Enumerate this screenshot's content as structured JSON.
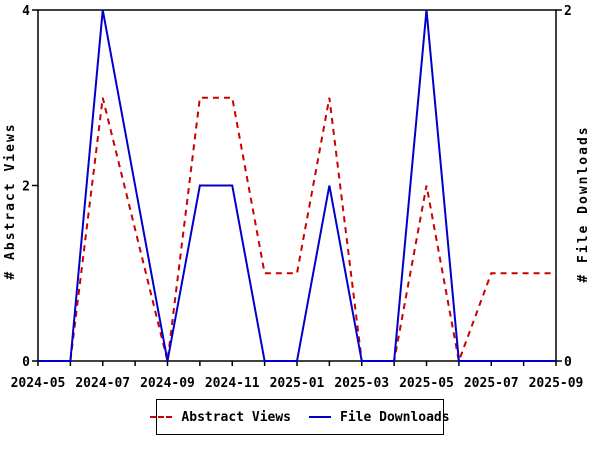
{
  "chart_data": {
    "type": "line",
    "title": "",
    "x": [
      "2024-05",
      "2024-06",
      "2024-07",
      "2024-08",
      "2024-09",
      "2024-10",
      "2024-11",
      "2024-12",
      "2025-01",
      "2025-02",
      "2025-03",
      "2025-04",
      "2025-05",
      "2025-06",
      "2025-07",
      "2025-08",
      "2025-09"
    ],
    "x_tick_labels": [
      "2024-05",
      "2024-07",
      "2024-09",
      "2024-11",
      "2025-01",
      "2025-03",
      "2025-05",
      "2025-07",
      "2025-09"
    ],
    "x_label_interval": 2,
    "series": [
      {
        "name": "Abstract Views",
        "axis": "left",
        "color": "#cc0000",
        "style": "dashed",
        "values": [
          0,
          0,
          3,
          1.5,
          0,
          3,
          3,
          1,
          1,
          3,
          0,
          0,
          2,
          0,
          1,
          1,
          1
        ]
      },
      {
        "name": "File Downloads",
        "axis": "right",
        "color": "#0000cc",
        "style": "solid",
        "values": [
          0,
          0,
          2,
          1,
          0,
          1,
          1,
          0,
          0,
          1,
          0,
          0,
          2,
          0,
          0,
          0,
          0
        ]
      }
    ],
    "ylabel": "# Abstract Views",
    "y2label": "# File Downloads",
    "ylim": [
      0,
      4
    ],
    "y2lim": [
      0,
      2
    ],
    "yticks": [
      "0",
      "2",
      "4"
    ],
    "y2ticks": [
      "0",
      "2"
    ],
    "grid": false,
    "legend_position": "bottom-center",
    "background": "#ffffff",
    "axis_color": "#000000"
  },
  "legend": {
    "items": [
      {
        "label": "Abstract Views"
      },
      {
        "label": "File Downloads"
      }
    ]
  }
}
